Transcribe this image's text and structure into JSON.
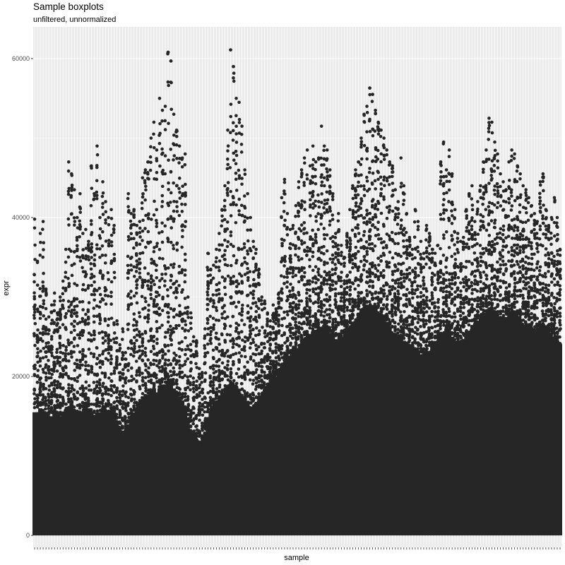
{
  "chart_data": {
    "type": "boxplot",
    "title": "Sample boxplots",
    "subtitle": "unfiltered, unnormalized",
    "xlabel": "sample",
    "ylabel": "expr",
    "ylim": [
      -1500,
      64000
    ],
    "y_ticks": [
      0,
      20000,
      40000,
      60000
    ],
    "y_tick_labels": [
      "0",
      "20000",
      "40000",
      "60000"
    ],
    "sample_count": 186,
    "sample_labels_printed": false,
    "grid": true,
    "panel_background": "#ebebeb",
    "point_color": "#262626",
    "annotated_points": [
      {
        "sample_index": 47,
        "y": 60800
      },
      {
        "sample_index": 48,
        "y": 59700
      },
      {
        "sample_index": 69,
        "y": 61100
      },
      {
        "sample_index": 70,
        "y": 59000
      },
      {
        "sample_index": 118,
        "y": 56300
      },
      {
        "sample_index": 119,
        "y": 55500
      }
    ],
    "max_per_sample": [
      39800,
      34500,
      38000,
      39500,
      31000,
      27500,
      29000,
      30500,
      28000,
      30000,
      32000,
      36000,
      47000,
      45500,
      43500,
      40000,
      43000,
      38000,
      38500,
      37000,
      46500,
      43000,
      49000,
      40000,
      44500,
      42000,
      40000,
      41000,
      39000,
      27000,
      24000,
      26000,
      23000,
      43000,
      40500,
      41000,
      39000,
      39500,
      45000,
      46000,
      47000,
      50000,
      52000,
      48500,
      55000,
      53500,
      54000,
      60800,
      59700,
      53000,
      51000,
      49000,
      47500,
      48000,
      30000,
      28000,
      25000,
      24500,
      21000,
      20500,
      26000,
      35500,
      33500,
      34000,
      36000,
      38000,
      41000,
      44000,
      51000,
      61100,
      59000,
      55000,
      54500,
      51500,
      46000,
      43000,
      40000,
      37000,
      36000,
      33500,
      30000,
      29500,
      28000,
      27000,
      29000,
      28500,
      30500,
      42500,
      44800,
      40500,
      38500,
      39000,
      41500,
      44500,
      46000,
      47500,
      48500,
      46500,
      49000,
      47000,
      47500,
      51500,
      49000,
      48500,
      46000,
      43000,
      38000,
      40500,
      36500,
      35000,
      38000,
      41000,
      44000,
      46000,
      47000,
      50000,
      53000,
      54000,
      56300,
      55500,
      53500,
      52000,
      51000,
      50000,
      48500,
      47000,
      46500,
      43500,
      42000,
      47500,
      44000,
      40500,
      37500,
      36000,
      41000,
      39500,
      37000,
      35500,
      39000,
      38000,
      36000,
      35500,
      36500,
      47000,
      49500,
      46000,
      48500,
      45500,
      41000,
      38000,
      37000,
      37500,
      41000,
      43000,
      44000,
      39500,
      42000,
      44000,
      47000,
      48500,
      52500,
      52000,
      49500,
      48000,
      45500,
      44500,
      43500,
      47000,
      48500,
      48000,
      46500,
      45500,
      44000,
      43500,
      42500,
      41500,
      40500,
      39500,
      44500,
      45500,
      41000,
      39000,
      40000,
      42500,
      40000,
      36000
    ],
    "solid_band_top_per_sample": [
      15500,
      15000,
      16000,
      15500,
      15000,
      14500,
      15000,
      15500,
      15500,
      15000,
      15000,
      15500,
      16000,
      16500,
      15500,
      15000,
      15000,
      15500,
      16500,
      16000,
      15500,
      15000,
      15500,
      15500,
      16000,
      15500,
      15000,
      15500,
      15000,
      13500,
      13000,
      12500,
      13000,
      14000,
      15000,
      15500,
      16000,
      16500,
      17000,
      17500,
      17500,
      18000,
      18500,
      18000,
      18500,
      19000,
      19000,
      19500,
      19000,
      18500,
      18000,
      17500,
      17000,
      16000,
      13500,
      12500,
      12000,
      12000,
      11500,
      11500,
      12500,
      14500,
      15500,
      16000,
      16500,
      17000,
      17500,
      18000,
      18500,
      19000,
      19000,
      18500,
      18000,
      17500,
      17000,
      16500,
      16000,
      16000,
      16500,
      17000,
      17500,
      18000,
      18500,
      19000,
      19500,
      20000,
      20500,
      21000,
      21500,
      22000,
      22500,
      22500,
      23000,
      23500,
      24000,
      24500,
      25000,
      25000,
      25500,
      25500,
      26000,
      26000,
      26500,
      26000,
      25500,
      25000,
      24500,
      24000,
      24500,
      25000,
      25500,
      26000,
      26500,
      27000,
      27500,
      28000,
      28500,
      28500,
      29000,
      29000,
      28500,
      28000,
      27500,
      27000,
      26500,
      26000,
      25500,
      25500,
      25000,
      25000,
      24500,
      24000,
      23500,
      23500,
      23000,
      23000,
      22500,
      22500,
      23000,
      23000,
      23500,
      24000,
      24500,
      25000,
      25500,
      26000,
      25500,
      25000,
      24500,
      24000,
      24000,
      24500,
      25000,
      25500,
      26000,
      26000,
      26500,
      27000,
      27500,
      28000,
      28500,
      28500,
      28000,
      27500,
      27000,
      27000,
      27000,
      27500,
      28000,
      28000,
      27500,
      27000,
      26500,
      26500,
      26000,
      26000,
      25500,
      25500,
      26000,
      26500,
      26000,
      25500,
      25000,
      25000,
      24500,
      24000
    ]
  }
}
